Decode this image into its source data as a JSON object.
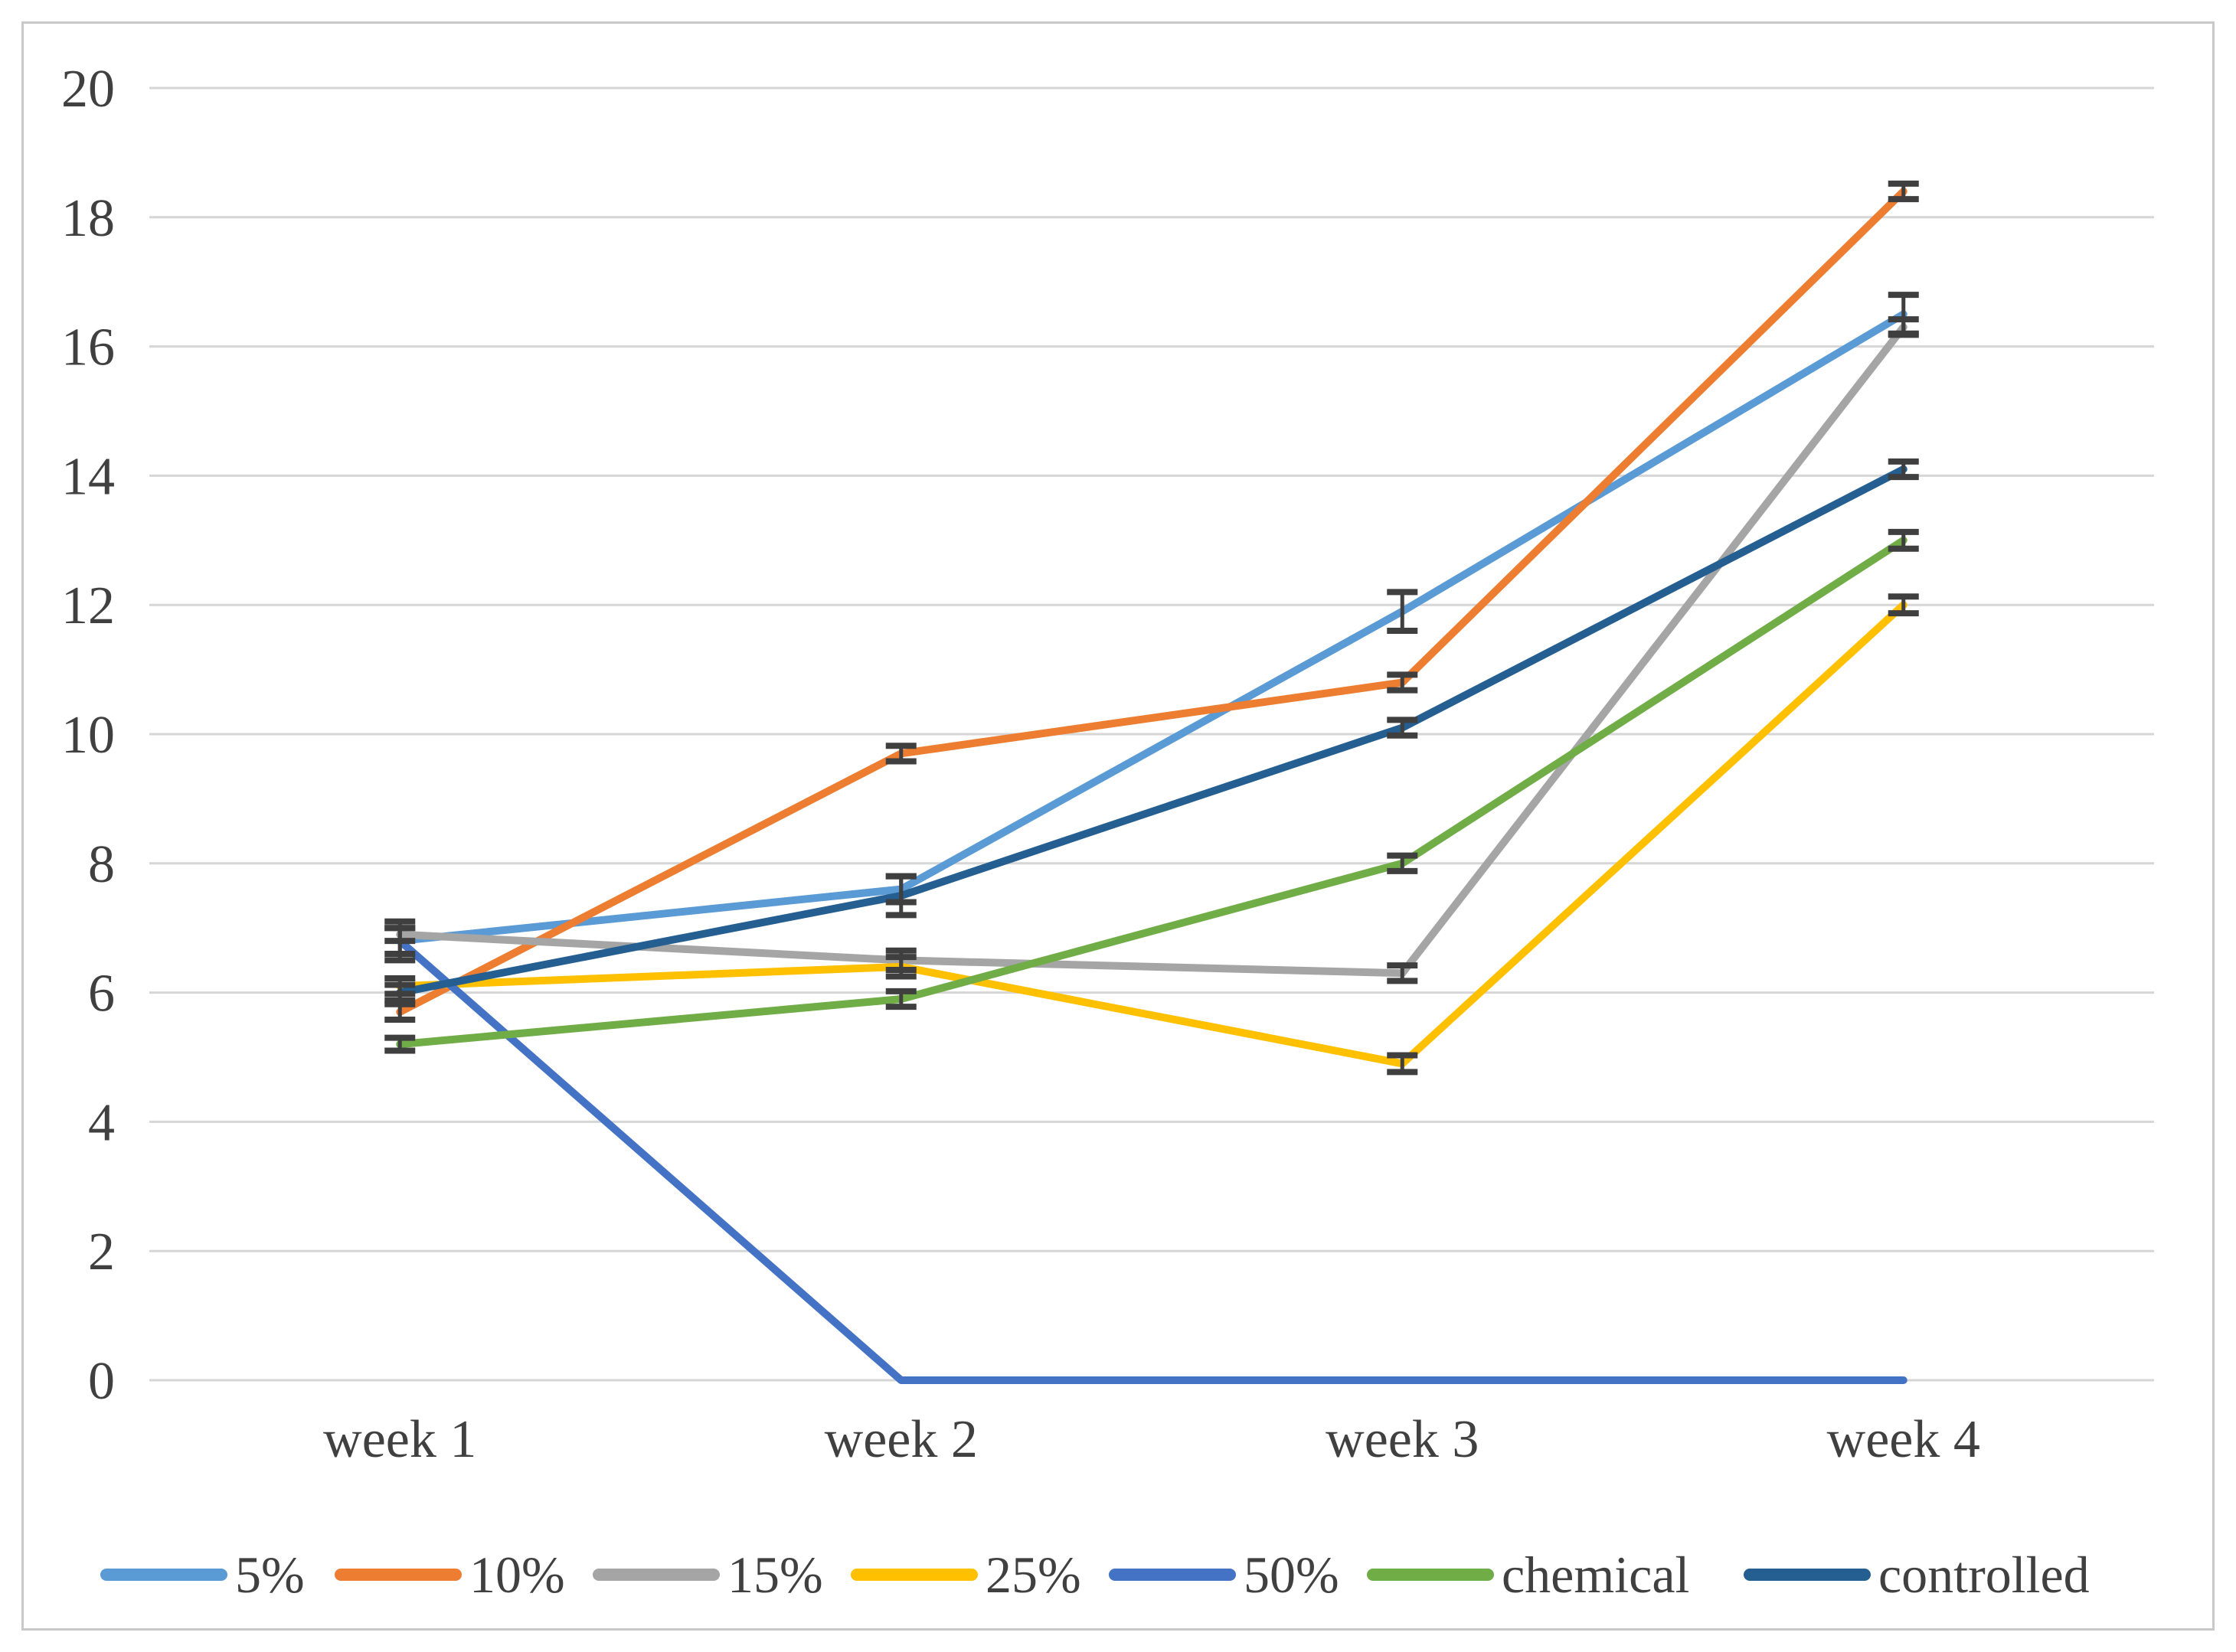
{
  "chart_data": {
    "type": "line",
    "title": "",
    "xlabel": "",
    "ylabel": "",
    "categories": [
      "week 1",
      "week 2",
      "week 3",
      "week 4"
    ],
    "yticks": [
      0,
      2,
      4,
      6,
      8,
      10,
      12,
      14,
      16,
      18,
      20
    ],
    "ylim": [
      0,
      20
    ],
    "grid": "horizontal",
    "legend_position": "bottom",
    "error_bars": true,
    "series": [
      {
        "name": "5%",
        "color": "#5B9BD5",
        "values": [
          6.8,
          7.6,
          11.9,
          16.5
        ],
        "errors": [
          0.2,
          0.2,
          0.3,
          0.3
        ]
      },
      {
        "name": "10%",
        "color": "#ED7D31",
        "values": [
          5.7,
          9.7,
          10.8,
          18.4
        ],
        "errors": [
          0.12,
          0.12,
          0.12,
          0.12
        ]
      },
      {
        "name": "15%",
        "color": "#A5A5A5",
        "values": [
          6.9,
          6.5,
          6.3,
          16.3
        ],
        "errors": [
          0.1,
          0.15,
          0.12,
          0.12
        ]
      },
      {
        "name": "25%",
        "color": "#FFC000",
        "values": [
          6.1,
          6.4,
          4.9,
          12.0
        ],
        "errors": [
          0.12,
          0.15,
          0.13,
          0.13
        ]
      },
      {
        "name": "50%",
        "color": "#4472C4",
        "values": [
          6.8,
          0,
          0,
          0
        ],
        "errors": [
          0.3,
          0,
          0,
          0
        ]
      },
      {
        "name": "chemical",
        "color": "#70AD47",
        "values": [
          5.2,
          5.9,
          8.0,
          13.0
        ],
        "errors": [
          0.1,
          0.12,
          0.12,
          0.13
        ]
      },
      {
        "name": "controlled",
        "color": "#255E91",
        "values": [
          6.0,
          7.5,
          10.1,
          14.1
        ],
        "errors": [
          0.12,
          0.3,
          0.12,
          0.12
        ]
      }
    ]
  },
  "styles": {
    "background": "#FFFFFF",
    "frame_border": "#C9C9C9",
    "gridline": "#D6D6D6",
    "text": "#404040",
    "errorbar": "#3F3F3F"
  }
}
